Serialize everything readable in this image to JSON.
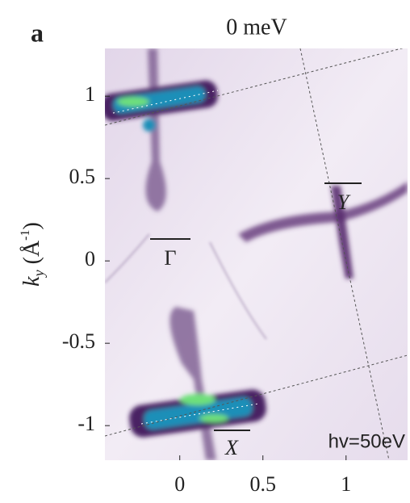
{
  "panel_label": "a",
  "chart_data": {
    "type": "image",
    "title": "0 meV",
    "ylabel_parts": [
      "k",
      "y",
      " (Å",
      "-1",
      ")"
    ],
    "annotations": [
      "Γ",
      "Y",
      "X",
      "hv=50eV"
    ],
    "xlim": [
      -0.45,
      1.37
    ],
    "ylim": [
      -1.21,
      1.29
    ],
    "xticks": [
      0,
      0.5,
      1
    ],
    "yticks": [
      1,
      0.5,
      0,
      -0.5,
      -1
    ],
    "grid": false
  }
}
